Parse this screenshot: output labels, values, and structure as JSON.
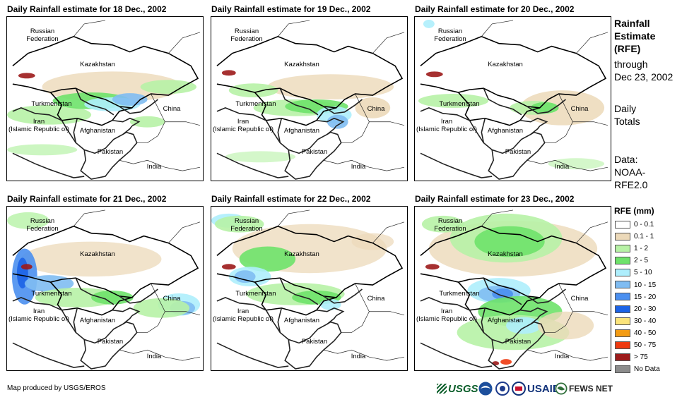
{
  "panels": [
    {
      "title": "Daily Rainfall estimate for 18 Dec., 2002"
    },
    {
      "title": "Daily Rainfall estimate for 19 Dec., 2002"
    },
    {
      "title": "Daily Rainfall estimate for 20 Dec., 2002"
    },
    {
      "title": "Daily Rainfall estimate for 21 Dec., 2002"
    },
    {
      "title": "Daily Rainfall estimate for 22 Dec., 2002"
    },
    {
      "title": "Daily Rainfall estimate for 23 Dec., 2002"
    }
  ],
  "map_labels": {
    "russia": "Russian\nFederation",
    "kazakhstan": "Kazakhstan",
    "turkmenistan": "Turkmenistan",
    "iran": "Iran\n(Islamic Republic of)",
    "afghanistan": "Afghanistan",
    "china": "China",
    "pakistan": "Pakistan",
    "india": "India"
  },
  "side": {
    "heading": "Rainfall\nEstimate\n(RFE)",
    "through": "through\nDec 23, 2002",
    "totals": "Daily\nTotals",
    "data": "Data:\nNOAA-\nRFE2.0"
  },
  "legend": {
    "title": "RFE (mm)",
    "items": [
      {
        "label": "0 - 0.1",
        "color": "#ffffff"
      },
      {
        "label": "0.1 - 1",
        "color": "#ecd9b9"
      },
      {
        "label": "1 - 2",
        "color": "#b7f2a6"
      },
      {
        "label": "2 - 5",
        "color": "#6ee26a"
      },
      {
        "label": "5 - 10",
        "color": "#aeeefc"
      },
      {
        "label": "10 - 15",
        "color": "#7fbcf2"
      },
      {
        "label": "15 - 20",
        "color": "#4a8ff0"
      },
      {
        "label": "20 - 30",
        "color": "#1c63e6"
      },
      {
        "label": "30 - 40",
        "color": "#fbe47b"
      },
      {
        "label": "40 - 50",
        "color": "#f39b12"
      },
      {
        "label": "50 - 75",
        "color": "#ee3a10"
      },
      {
        "label": "> 75",
        "color": "#9c1a1a"
      },
      {
        "label": "No Data",
        "color": "#8c8c8c"
      }
    ]
  },
  "credit": "Map produced by USGS/EROS",
  "logos": {
    "usgs": "USGS",
    "usaid": "USAID",
    "fewsnet": "FEWS NET"
  }
}
